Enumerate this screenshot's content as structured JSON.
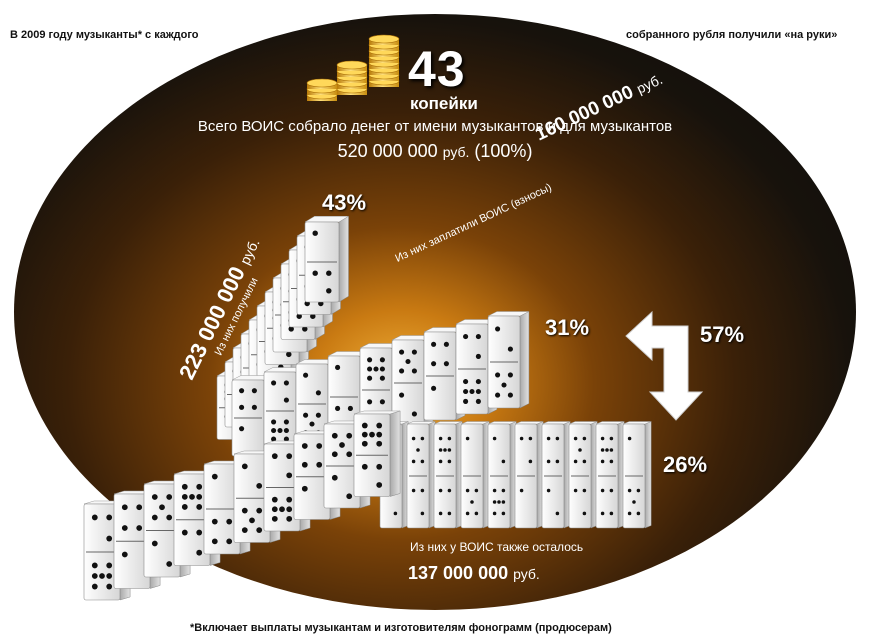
{
  "header": {
    "left": "В 2009 году музыканты* с каждого",
    "right": "собранного рубля получили «на руки»"
  },
  "headline": {
    "value": "43",
    "unit": "копейки",
    "icon": "coin-stacks-icon"
  },
  "total": {
    "label": "Всего ВОИС собрало денег от имени музыкантов и для музыкантов",
    "amount": "520 000 000",
    "unit": "руб.",
    "percent": "(100%)"
  },
  "received": {
    "percent": "43%",
    "sublabel": "Из них получили",
    "amount": "223 000 000",
    "unit": "руб."
  },
  "paid": {
    "percent": "31%",
    "sublabel": "Из них заплатили ВОИС (взносы)",
    "amount": "160 000 000",
    "unit": "руб."
  },
  "transfer": {
    "percent": "57%",
    "icon": "bent-arrow-icon"
  },
  "remained": {
    "percent": "26%",
    "sublabel": "Из них у ВОИС также осталось",
    "amount": "137 000 000",
    "unit": "руб."
  },
  "footnote": "*Включает выплаты музыкантам и изготовителям фонограмм (продюсерам)",
  "colors": {
    "background": "#ffffff",
    "oval_center": "#f2b23a",
    "oval_edge": "#0a0a0a",
    "text_light": "#ffffff",
    "domino": "#eeeeee",
    "coin": "#f0b81e"
  }
}
